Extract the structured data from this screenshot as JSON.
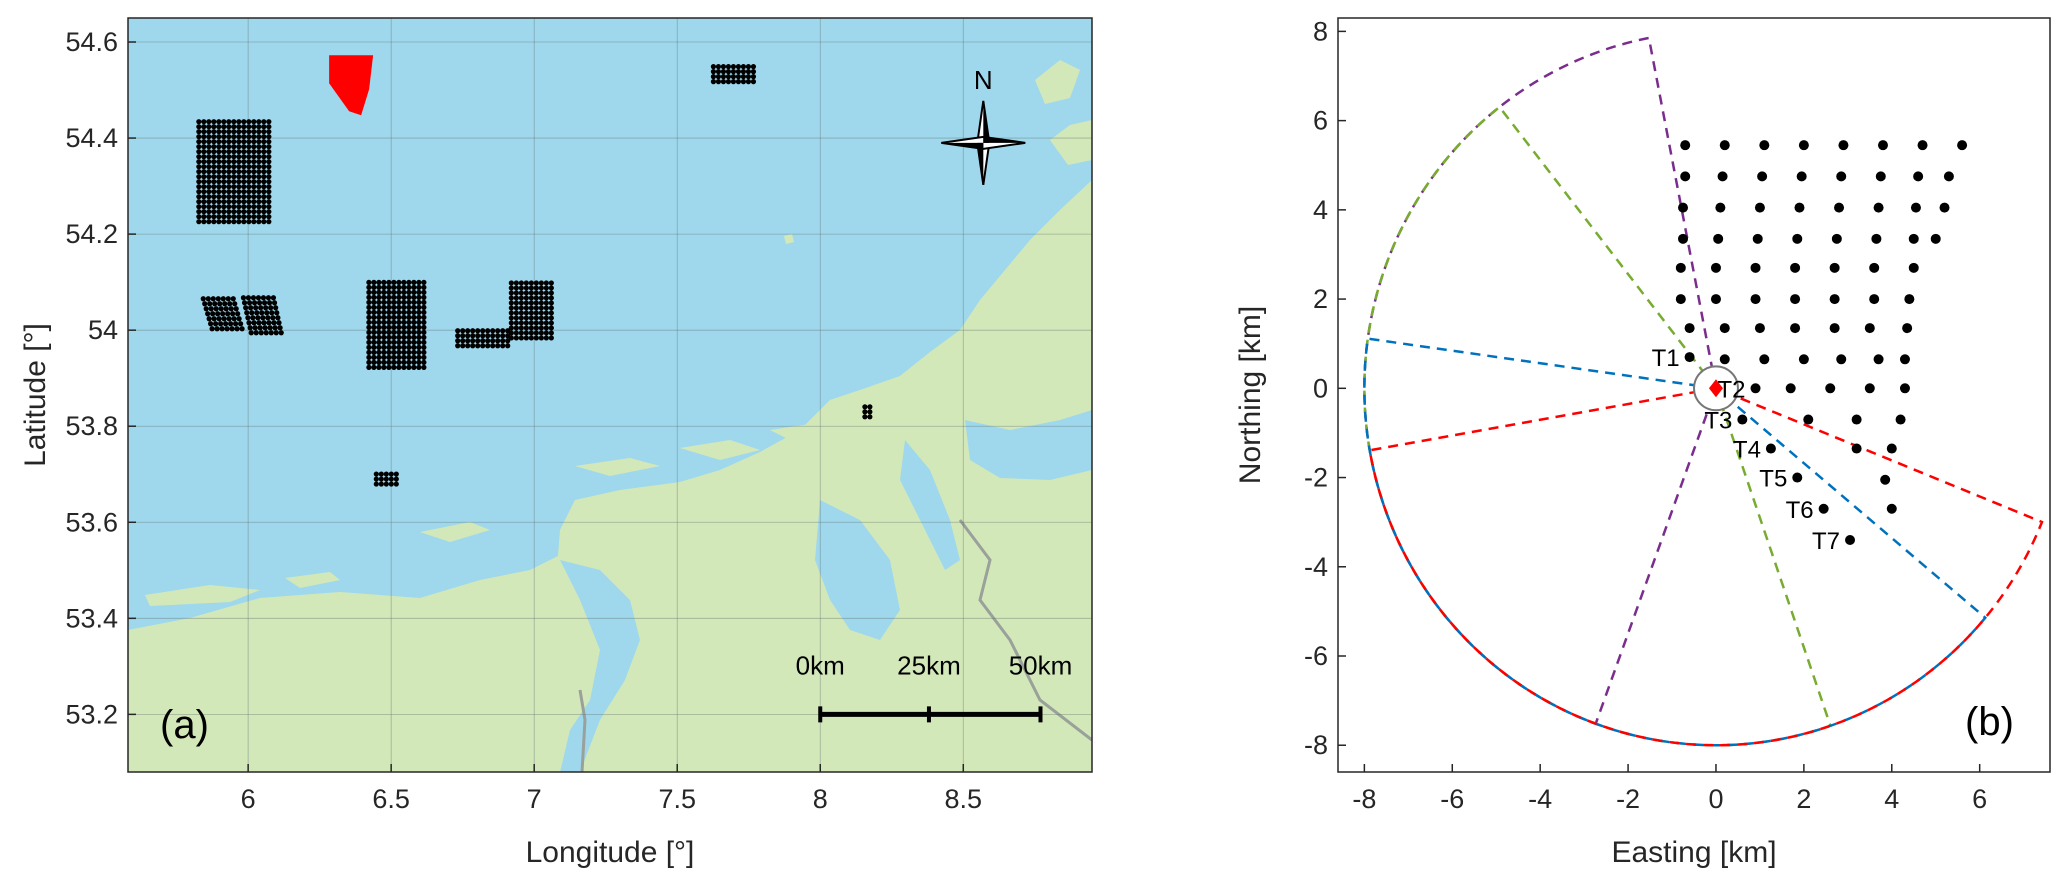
{
  "panel_a": {
    "label": "(a)",
    "xlabel": "Longitude [°]",
    "ylabel": "Latitude [°]",
    "xlim": [
      5.58,
      8.95
    ],
    "ylim": [
      53.08,
      54.65
    ],
    "xticks": [
      6,
      6.5,
      7,
      7.5,
      8,
      8.5
    ],
    "xtick_labels": [
      "6",
      "6.5",
      "7",
      "7.5",
      "8",
      "8.5"
    ],
    "yticks": [
      53.2,
      53.4,
      53.6,
      53.8,
      54,
      54.2,
      54.4,
      54.6
    ],
    "ytick_labels": [
      "53.2",
      "53.4",
      "53.6",
      "53.8",
      "54",
      "54.2",
      "54.4",
      "54.6"
    ],
    "grid": true,
    "colors": {
      "sea": "#9fd8ec",
      "land": "#d3e8b9",
      "border": "#9aa09a",
      "farm": "#000000",
      "highlight": "#ff0000"
    },
    "north_arrow": {
      "label": "N",
      "lon": 8.57,
      "lat": 54.39
    },
    "scale_bar": {
      "labels": [
        "0km",
        "25km",
        "50km"
      ],
      "lons": [
        8.0,
        8.38,
        8.77
      ],
      "lat": 53.2
    },
    "wind_farms": [
      {
        "name": "highlighted",
        "lon": 6.36,
        "lat": 54.51,
        "color": "#ff0000"
      },
      {
        "name": "farm",
        "lon": 7.7,
        "lat": 54.53,
        "color": "#000000"
      },
      {
        "name": "farm",
        "lon": 5.95,
        "lat": 54.33,
        "color": "#000000"
      },
      {
        "name": "farm",
        "lon": 5.92,
        "lat": 54.03,
        "color": "#000000"
      },
      {
        "name": "farm",
        "lon": 6.05,
        "lat": 54.03,
        "color": "#000000"
      },
      {
        "name": "farm",
        "lon": 6.52,
        "lat": 54.01,
        "color": "#000000"
      },
      {
        "name": "farm",
        "lon": 6.82,
        "lat": 53.98,
        "color": "#000000"
      },
      {
        "name": "farm",
        "lon": 6.99,
        "lat": 54.04,
        "color": "#000000"
      },
      {
        "name": "farm",
        "lon": 8.17,
        "lat": 53.83,
        "color": "#000000"
      },
      {
        "name": "farm",
        "lon": 6.49,
        "lat": 53.69,
        "color": "#000000"
      }
    ]
  },
  "panel_b": {
    "label": "(b)",
    "chart_data": {
      "type": "scatter",
      "xlabel": "Easting [km]",
      "ylabel": "Northing [km]",
      "xlim": [
        -8.6,
        7.6
      ],
      "ylim": [
        -8.6,
        8.3
      ],
      "xticks": [
        -8,
        -6,
        -4,
        -2,
        0,
        2,
        4,
        6
      ],
      "xtick_labels": [
        "-8",
        "-6",
        "-4",
        "-2",
        "0",
        "2",
        "4",
        "6"
      ],
      "yticks": [
        -8,
        -6,
        -4,
        -2,
        0,
        2,
        4,
        6,
        8
      ],
      "ytick_labels": [
        "-8",
        "-6",
        "-4",
        "-2",
        "0",
        "2",
        "4",
        "6",
        "8"
      ],
      "grid": false,
      "lidar": {
        "x": 0,
        "y": 0,
        "color": "#ff0000"
      },
      "turbines": [
        {
          "label": "T1",
          "x": -0.6,
          "y": 0.7
        },
        {
          "label": "T2",
          "x": 0.9,
          "y": 0.0
        },
        {
          "label": "T3",
          "x": 0.6,
          "y": -0.7
        },
        {
          "label": "T4",
          "x": 1.25,
          "y": -1.35
        },
        {
          "label": "T5",
          "x": 1.85,
          "y": -2.0
        },
        {
          "label": "T6",
          "x": 2.45,
          "y": -2.7
        },
        {
          "label": "T7",
          "x": 3.05,
          "y": -3.4
        }
      ],
      "grid_points": {
        "rows_y": [
          5.45,
          4.75,
          4.05,
          3.35,
          2.7,
          2.0,
          1.35,
          0.65,
          0.0,
          -0.7,
          -1.35,
          -2.05,
          -2.7,
          -3.4
        ],
        "rows_x": [
          [
            -0.7,
            0.2,
            1.1,
            2.0,
            2.9,
            3.8,
            4.7,
            5.6
          ],
          [
            -0.7,
            0.15,
            1.05,
            1.95,
            2.85,
            3.75,
            4.6,
            5.3
          ],
          [
            -0.75,
            0.1,
            1.0,
            1.9,
            2.8,
            3.7,
            4.55,
            5.2
          ],
          [
            -0.75,
            0.05,
            0.95,
            1.85,
            2.75,
            3.65,
            4.5,
            5.0
          ],
          [
            -0.8,
            0.0,
            0.9,
            1.8,
            2.7,
            3.6,
            4.5
          ],
          [
            -0.8,
            0.0,
            0.9,
            1.8,
            2.7,
            3.6,
            4.4
          ],
          [
            -0.6,
            0.2,
            1.0,
            1.8,
            2.7,
            3.5,
            4.35
          ],
          [
            0.2,
            1.1,
            2.0,
            2.85,
            3.7,
            4.3
          ],
          [
            1.7,
            2.6,
            3.5,
            4.3
          ],
          [
            2.1,
            3.2,
            4.2
          ],
          [
            3.2,
            4.0
          ],
          [
            3.85
          ],
          [
            4.0
          ],
          []
        ]
      },
      "sectors": [
        {
          "name": "purple",
          "color": "#7b2d8e",
          "angles_deg": [
            101,
            250
          ]
        },
        {
          "name": "green",
          "color": "#77ac30",
          "angles_deg": [
            128,
            289
          ]
        },
        {
          "name": "blue",
          "color": "#0072bd",
          "angles_deg": [
            172,
            320
          ]
        },
        {
          "name": "red",
          "color": "#ff0000",
          "angles_deg": [
            190,
            338
          ]
        }
      ],
      "radius_km": 8
    }
  }
}
